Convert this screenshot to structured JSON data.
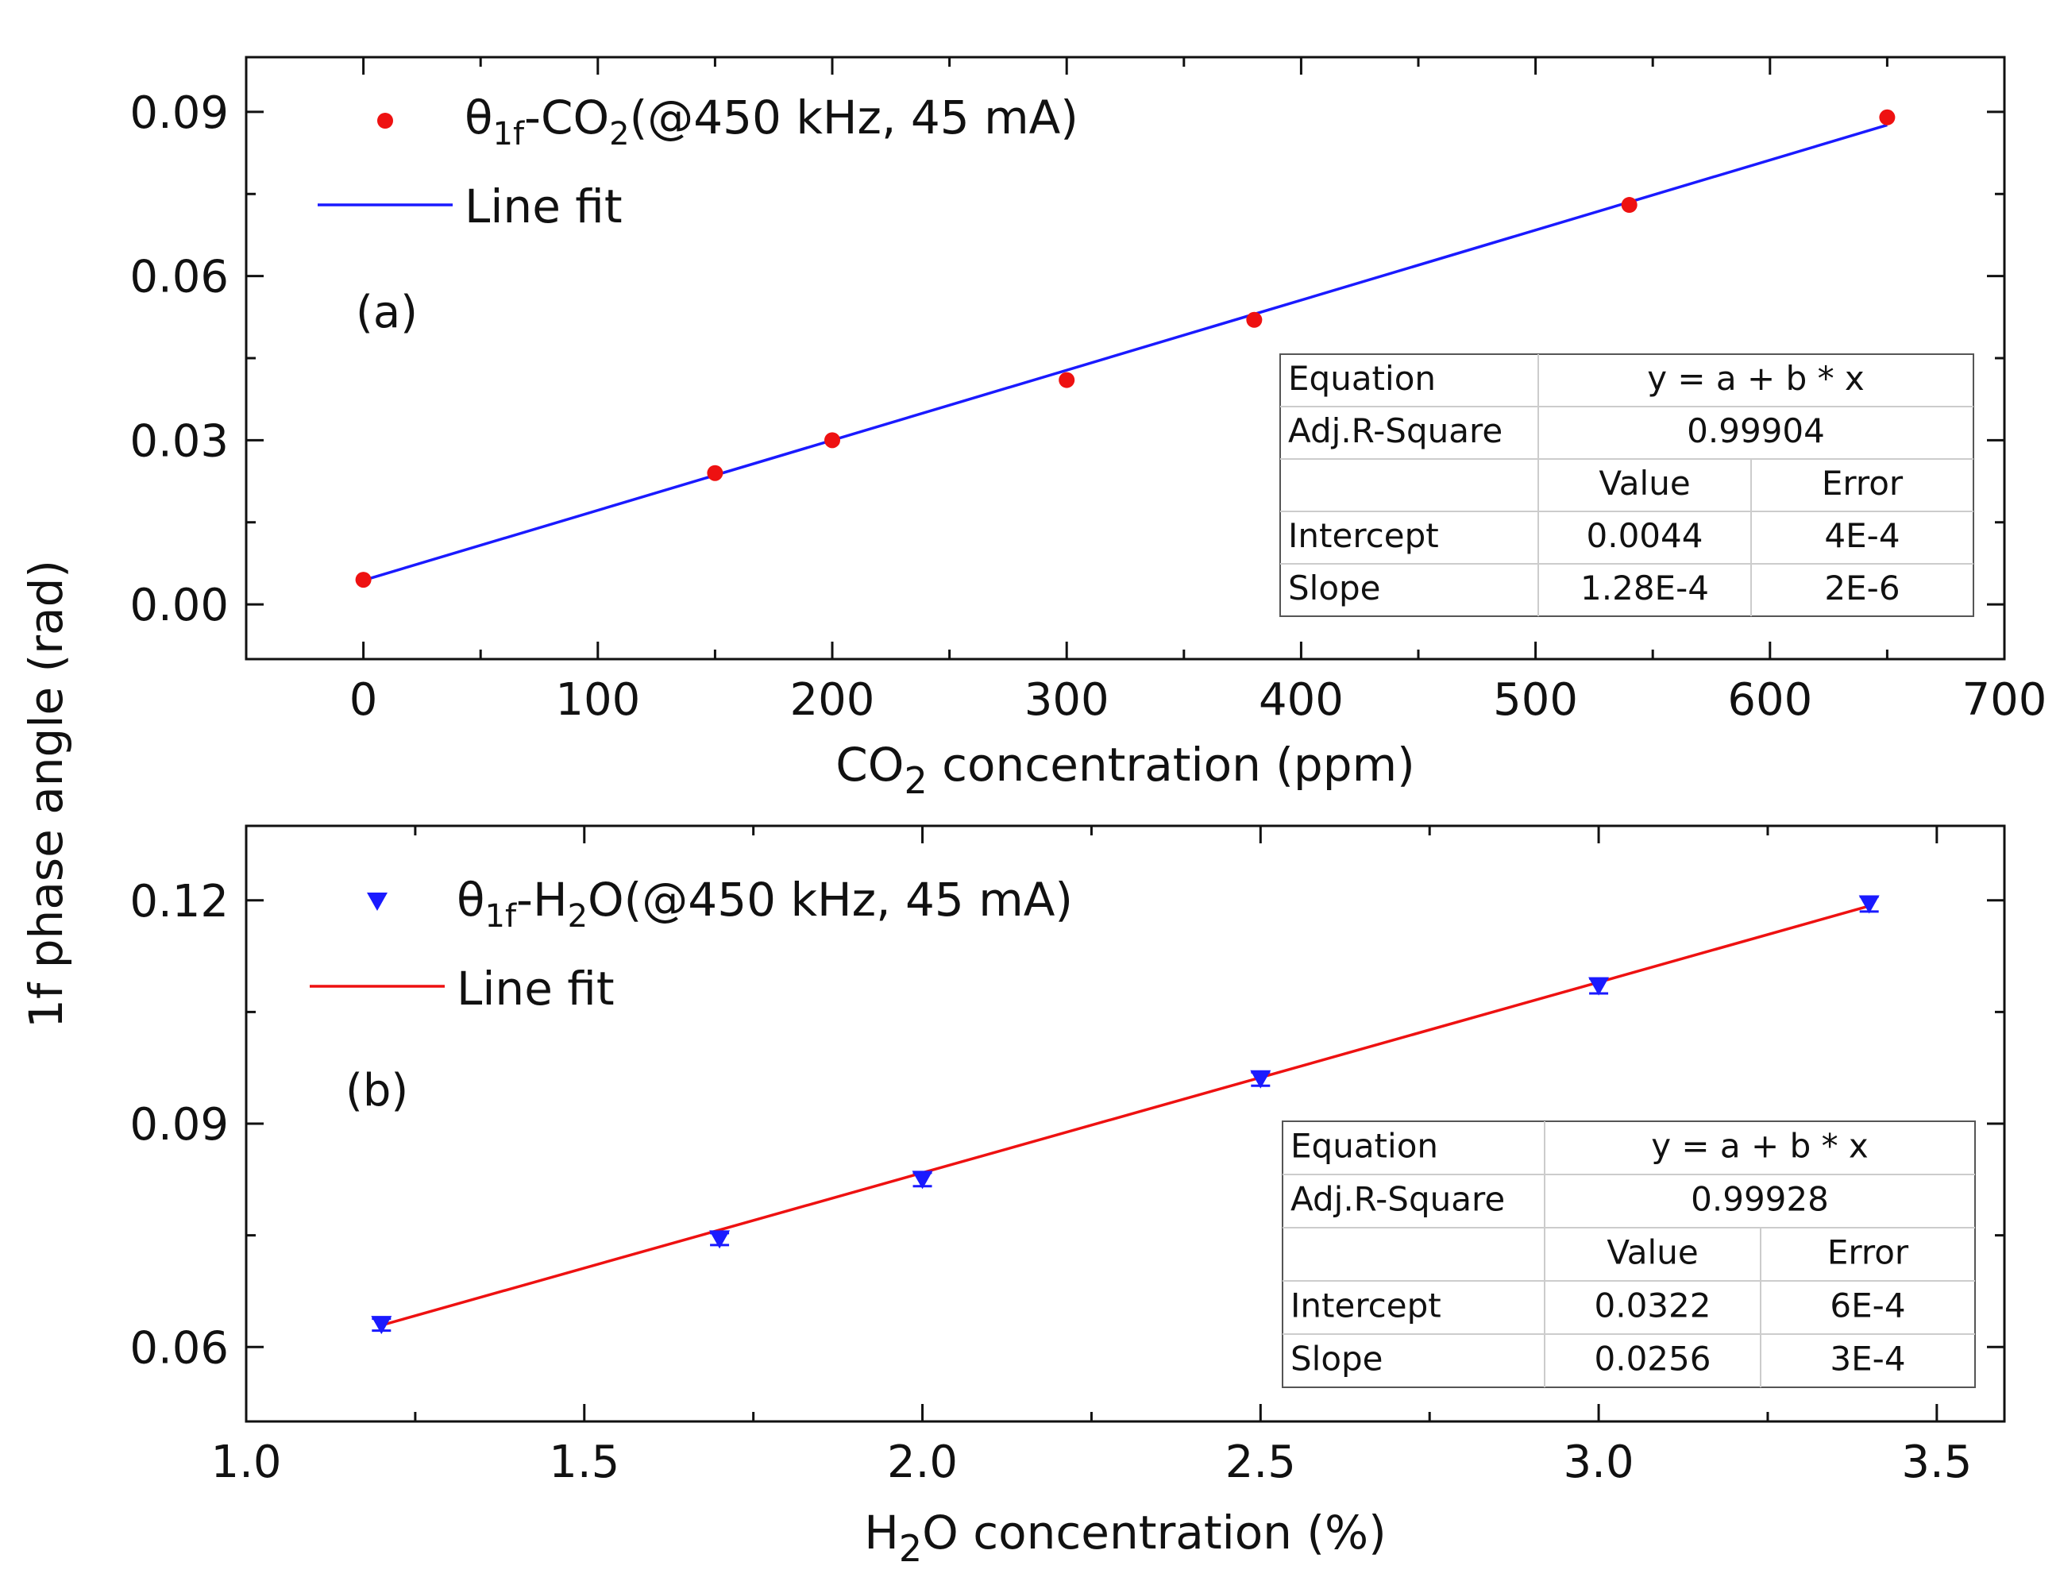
{
  "figure": {
    "y_axis_label": "1f phase angle (rad)"
  },
  "chart_data": [
    {
      "type": "scatter",
      "panel_label": "(a)",
      "xlabel": {
        "prefix": "CO",
        "sub": "2",
        "suffix": " concentration (ppm)"
      },
      "xlim": [
        -50,
        700
      ],
      "ylim": [
        -0.01,
        0.1
      ],
      "x_ticks": [
        0,
        100,
        200,
        300,
        400,
        500,
        600,
        700
      ],
      "x_tick_labels": [
        "0",
        "100",
        "200",
        "300",
        "400",
        "500",
        "600",
        "700"
      ],
      "y_ticks": [
        0.0,
        0.03,
        0.06,
        0.09
      ],
      "y_tick_labels": [
        "0.00",
        "0.03",
        "0.06",
        "0.09"
      ],
      "series": [
        {
          "name": "θ1f-CO2(@450 kHz, 45 mA)",
          "legend": {
            "theta": "θ",
            "sub1": "1f",
            "mid": "-CO",
            "sub2": "2",
            "rest": "(@450 kHz, 45 mA)"
          },
          "marker": "circle",
          "color": "#ee1111",
          "x": [
            0,
            150,
            200,
            300,
            380,
            540,
            650
          ],
          "y": [
            0.0045,
            0.024,
            0.03,
            0.041,
            0.052,
            0.073,
            0.089
          ]
        }
      ],
      "fit": {
        "legend": "Line fit",
        "color": "#1a1aff",
        "intercept": 0.0044,
        "slope": 0.000128,
        "x_range": [
          0,
          650
        ]
      },
      "table": {
        "equation_label": "Equation",
        "equation": "y = a + b * x",
        "r2_label": "Adj.R-Square",
        "r2": "0.99904",
        "value_header": "Value",
        "error_header": "Error",
        "rows": [
          {
            "label": "Intercept",
            "value": "0.0044",
            "error": "4E-4"
          },
          {
            "label": "Slope",
            "value": "1.28E-4",
            "error": "2E-6"
          }
        ]
      }
    },
    {
      "type": "scatter",
      "panel_label": "(b)",
      "xlabel": {
        "prefix": "H",
        "sub": "2",
        "suffix": "O concentration (%)"
      },
      "xlim": [
        1.0,
        3.6
      ],
      "ylim": [
        0.05,
        0.13
      ],
      "x_ticks": [
        1.0,
        1.5,
        2.0,
        2.5,
        3.0,
        3.5
      ],
      "x_tick_labels": [
        "1.0",
        "1.5",
        "2.0",
        "2.5",
        "3.0",
        "3.5"
      ],
      "y_ticks": [
        0.06,
        0.09,
        0.12
      ],
      "y_tick_labels": [
        "0.06",
        "0.09",
        "0.12"
      ],
      "series": [
        {
          "name": "θ1f-H2O(@450 kHz, 45 mA)",
          "legend": {
            "theta": "θ",
            "sub1": "1f",
            "mid": "-H",
            "sub2": "2",
            "rest": "O(@450 kHz, 45 mA)"
          },
          "marker": "triangle-down",
          "color": "#1a1aff",
          "x": [
            1.2,
            1.7,
            2.0,
            2.5,
            3.0,
            3.4
          ],
          "y": [
            0.063,
            0.0745,
            0.0825,
            0.096,
            0.1085,
            0.1195
          ],
          "yerr": [
            0.0008,
            0.0008,
            0.0009,
            0.0009,
            0.001,
            0.001
          ]
        }
      ],
      "fit": {
        "legend": "Line fit",
        "color": "#ee1111",
        "intercept": 0.0322,
        "slope": 0.0256,
        "x_range": [
          1.2,
          3.4
        ]
      },
      "table": {
        "equation_label": "Equation",
        "equation": "y = a + b * x",
        "r2_label": "Adj.R-Square",
        "r2": "0.99928",
        "value_header": "Value",
        "error_header": "Error",
        "rows": [
          {
            "label": "Intercept",
            "value": "0.0322",
            "error": "6E-4"
          },
          {
            "label": "Slope",
            "value": "0.0256",
            "error": "3E-4"
          }
        ]
      }
    }
  ]
}
